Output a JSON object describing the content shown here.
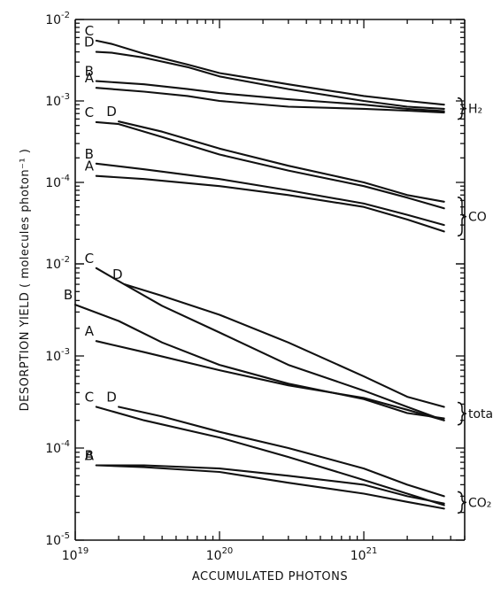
{
  "chart_data": {
    "type": "line",
    "xlabel": "ACCUMULATED PHOTONS",
    "ylabel": "DESORPTION YIELD ( molecules photon⁻¹ )",
    "x_scale": "log",
    "y_scale": "log",
    "xlim": [
      1e+19,
      5e+21
    ],
    "x_ticks": [
      {
        "value": 1e+19,
        "base": "10",
        "exp": "19"
      },
      {
        "value": 1e+20,
        "base": "10",
        "exp": "20"
      },
      {
        "value": 1e+21,
        "base": "10",
        "exp": "21"
      }
    ],
    "grid": false,
    "panels": [
      {
        "name": "upper",
        "ylim": [
          1e-05,
          0.01
        ],
        "y_ticks": [
          {
            "value": 0.01,
            "base": "10",
            "exp": "-2"
          },
          {
            "value": 0.001,
            "base": "10",
            "exp": "-3"
          },
          {
            "value": 0.0001,
            "base": "10",
            "exp": "-4"
          }
        ],
        "groups": [
          {
            "name": "H₂",
            "series": [
              {
                "name": "C",
                "x": [
                  1.4e+19,
                  1.8e+19,
                  3e+19,
                  6e+19,
                  1e+20,
                  3e+20,
                  1e+21,
                  2e+21,
                  3.6e+21
                ],
                "y": [
                  0.0055,
                  0.005,
                  0.0038,
                  0.0028,
                  0.0022,
                  0.0016,
                  0.00115,
                  0.001,
                  0.0009
                ]
              },
              {
                "name": "D",
                "x": [
                  1.4e+19,
                  1.8e+19,
                  3e+19,
                  6e+19,
                  1e+20,
                  3e+20,
                  1e+21,
                  2e+21,
                  3.6e+21
                ],
                "y": [
                  0.004,
                  0.0039,
                  0.0034,
                  0.0026,
                  0.002,
                  0.0014,
                  0.001,
                  0.00085,
                  0.0008
                ]
              },
              {
                "name": "B",
                "x": [
                  1.4e+19,
                  3e+19,
                  6e+19,
                  1e+20,
                  3e+20,
                  1e+21,
                  2e+21,
                  3.6e+21
                ],
                "y": [
                  0.00175,
                  0.0016,
                  0.0014,
                  0.00125,
                  0.00105,
                  0.0009,
                  0.0008,
                  0.00075
                ]
              },
              {
                "name": "A",
                "x": [
                  1.4e+19,
                  3e+19,
                  6e+19,
                  1e+20,
                  3e+20,
                  1e+21,
                  2e+21,
                  3.6e+21
                ],
                "y": [
                  0.00145,
                  0.0013,
                  0.00115,
                  0.001,
                  0.00085,
                  0.0008,
                  0.00076,
                  0.00072
                ]
              }
            ]
          },
          {
            "name": "CO",
            "series": [
              {
                "name": "C",
                "x": [
                  1.4e+19,
                  2e+19,
                  4e+19,
                  1e+20,
                  3e+20,
                  1e+21,
                  2e+21,
                  3.6e+21
                ],
                "y": [
                  0.00055,
                  0.00052,
                  0.00036,
                  0.00022,
                  0.00014,
                  9e-05,
                  6.5e-05,
                  4.8e-05
                ]
              },
              {
                "name": "D",
                "x": [
                  2e+19,
                  4e+19,
                  1e+20,
                  3e+20,
                  1e+21,
                  2e+21,
                  3.6e+21
                ],
                "y": [
                  0.00056,
                  0.00042,
                  0.00026,
                  0.00016,
                  0.0001,
                  7e-05,
                  5.8e-05
                ]
              },
              {
                "name": "B",
                "x": [
                  1.4e+19,
                  3e+19,
                  1e+20,
                  3e+20,
                  1e+21,
                  2e+21,
                  3.6e+21
                ],
                "y": [
                  0.00017,
                  0.000145,
                  0.00011,
                  8e-05,
                  5.5e-05,
                  4e-05,
                  3e-05
                ]
              },
              {
                "name": "A",
                "x": [
                  1.4e+19,
                  3e+19,
                  1e+20,
                  3e+20,
                  1e+21,
                  2e+21,
                  3.6e+21
                ],
                "y": [
                  0.00012,
                  0.00011,
                  9e-05,
                  7e-05,
                  5e-05,
                  3.5e-05,
                  2.5e-05
                ]
              }
            ]
          }
        ]
      },
      {
        "name": "lower",
        "ylim": [
          1e-05,
          0.01
        ],
        "y_ticks": [
          {
            "value": 0.01,
            "base": "10",
            "exp": "-2"
          },
          {
            "value": 0.001,
            "base": "10",
            "exp": "-3"
          },
          {
            "value": 0.0001,
            "base": "10",
            "exp": "-4"
          },
          {
            "value": 1e-05,
            "base": "10",
            "exp": "-5"
          }
        ],
        "groups": [
          {
            "name": "total",
            "series": [
              {
                "name": "C",
                "x": [
                  1.4e+19,
                  2e+19,
                  4e+19,
                  1e+20,
                  3e+20,
                  1e+21,
                  2e+21,
                  3.6e+21
                ],
                "y": [
                  0.009,
                  0.0065,
                  0.0035,
                  0.0018,
                  0.0008,
                  0.00042,
                  0.00028,
                  0.0002
                ]
              },
              {
                "name": "D",
                "x": [
                  2.2e+19,
                  4e+19,
                  1e+20,
                  3e+20,
                  1e+21,
                  2e+21,
                  3.6e+21
                ],
                "y": [
                  0.006,
                  0.0045,
                  0.0028,
                  0.0014,
                  0.0006,
                  0.00036,
                  0.00028
                ]
              },
              {
                "name": "B",
                "x": [
                  1e+19,
                  2e+19,
                  4e+19,
                  1e+20,
                  3e+20,
                  1e+21,
                  2e+21,
                  3.6e+21
                ],
                "y": [
                  0.0036,
                  0.0024,
                  0.0014,
                  0.0008,
                  0.0005,
                  0.00034,
                  0.00024,
                  0.00021
                ]
              },
              {
                "name": "A",
                "x": [
                  1.4e+19,
                  3e+19,
                  1e+20,
                  3e+20,
                  1e+21,
                  2e+21,
                  3.6e+21
                ],
                "y": [
                  0.00145,
                  0.0011,
                  0.0007,
                  0.00048,
                  0.00035,
                  0.00026,
                  0.0002
                ]
              }
            ]
          },
          {
            "name": "CO₂",
            "series": [
              {
                "name": "C",
                "x": [
                  1.4e+19,
                  3e+19,
                  1e+20,
                  3e+20,
                  1e+21,
                  2e+21,
                  3.6e+21
                ],
                "y": [
                  0.00028,
                  0.0002,
                  0.00013,
                  8e-05,
                  4.5e-05,
                  3.2e-05,
                  2.4e-05
                ]
              },
              {
                "name": "D",
                "x": [
                  2e+19,
                  4e+19,
                  1e+20,
                  3e+20,
                  1e+21,
                  2e+21,
                  3.6e+21
                ],
                "y": [
                  0.00028,
                  0.00022,
                  0.00015,
                  0.0001,
                  6e-05,
                  4e-05,
                  3e-05
                ]
              },
              {
                "name": "B",
                "x": [
                  1.4e+19,
                  3e+19,
                  1e+20,
                  3e+20,
                  1e+21,
                  2e+21,
                  3.6e+21
                ],
                "y": [
                  6.5e-05,
                  6.5e-05,
                  6e-05,
                  5e-05,
                  4e-05,
                  3e-05,
                  2.5e-05
                ]
              },
              {
                "name": "A",
                "x": [
                  1.4e+19,
                  3e+19,
                  1e+20,
                  3e+20,
                  1e+21,
                  2e+21,
                  3.6e+21
                ],
                "y": [
                  6.5e-05,
                  6.2e-05,
                  5.5e-05,
                  4.2e-05,
                  3.2e-05,
                  2.6e-05,
                  2.2e-05
                ]
              }
            ]
          }
        ]
      }
    ]
  }
}
